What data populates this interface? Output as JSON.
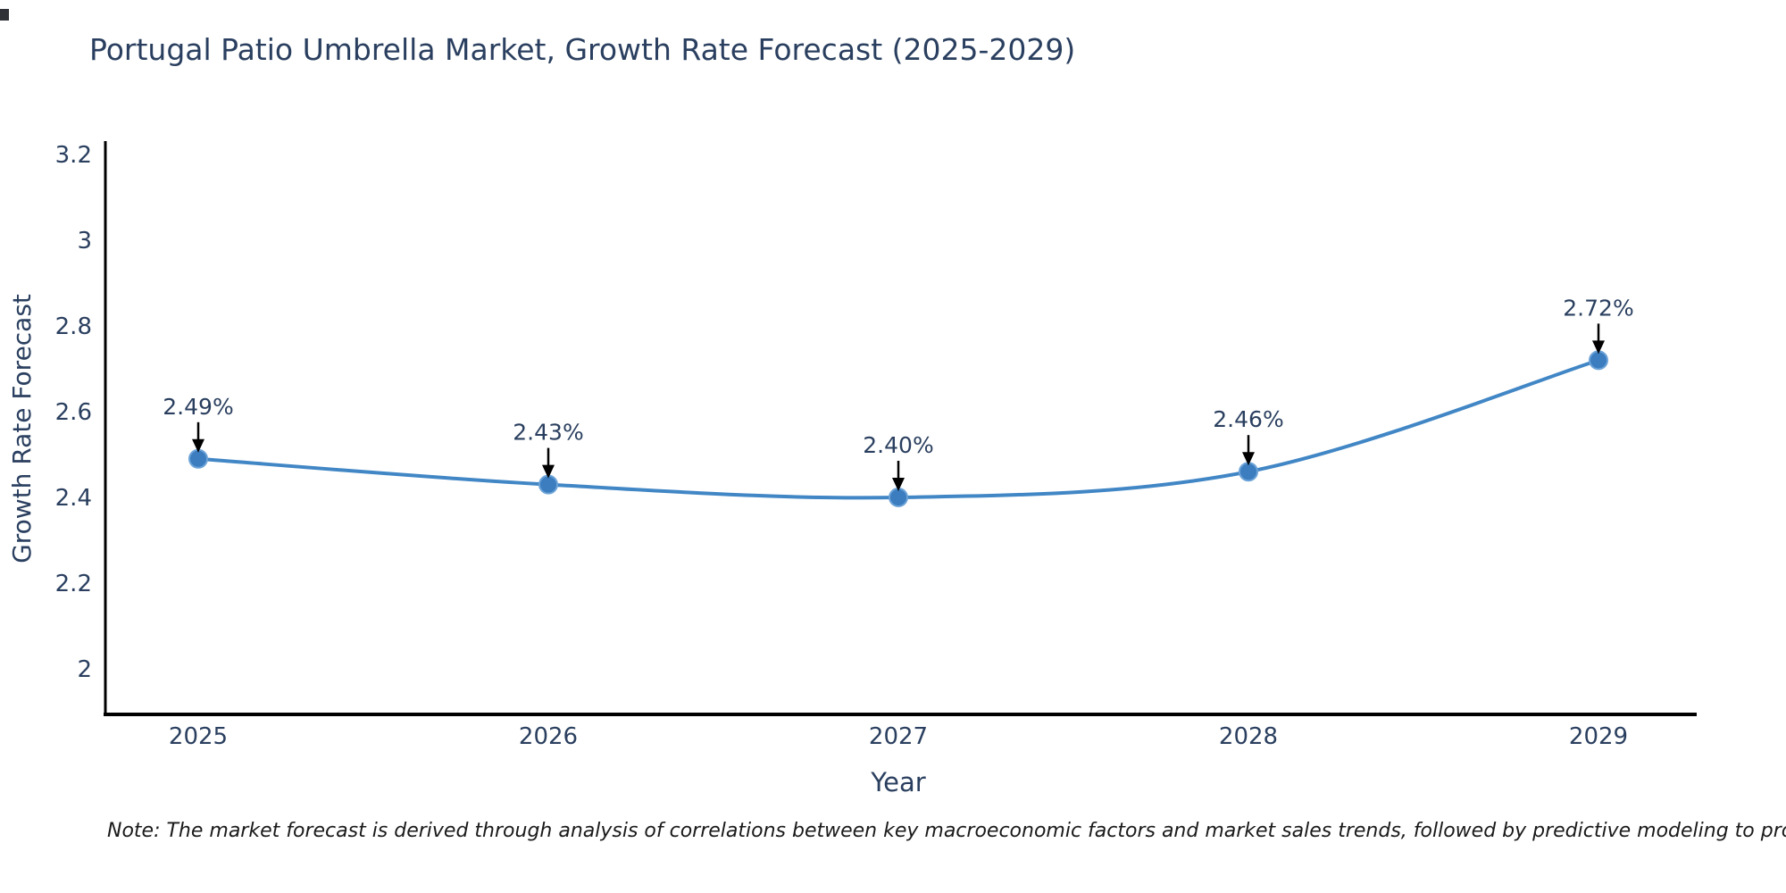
{
  "chart_data": {
    "type": "line",
    "title": "Portugal Patio Umbrella Market, Growth Rate Forecast (2025-2029)",
    "xlabel": "Year",
    "ylabel": "Growth Rate Forecast",
    "categories": [
      "2025",
      "2026",
      "2027",
      "2028",
      "2029"
    ],
    "series": [
      {
        "name": "Growth Rate Forecast",
        "values": [
          2.49,
          2.43,
          2.4,
          2.46,
          2.72
        ]
      }
    ],
    "point_labels": [
      "2.49%",
      "2.43%",
      "2.40%",
      "2.46%",
      "2.72%"
    ],
    "y_tick_labels": [
      "3.2",
      "3",
      "2.8",
      "2.6",
      "2.4",
      "2.2",
      "2"
    ],
    "y_tick_values": [
      3.2,
      3.0,
      2.8,
      2.6,
      2.4,
      2.2,
      2.0
    ],
    "ylim": [
      1.89,
      3.23
    ],
    "grid": false,
    "legend": "hidden",
    "line_shape": "spline",
    "colors": {
      "line": "#4186c5",
      "marker": "#3b7dbf",
      "marker_edge": "#6ca3d8",
      "axis": "#000000",
      "text": "#2a3f5f",
      "annotation_arrow": "#000000",
      "note_text": "#1a1a1a"
    }
  },
  "footnote": {
    "text": "Note: The market forecast is derived through analysis of correlations between key macroeconomic factors and market sales trends, followed by predictive modeling to project future sales"
  }
}
